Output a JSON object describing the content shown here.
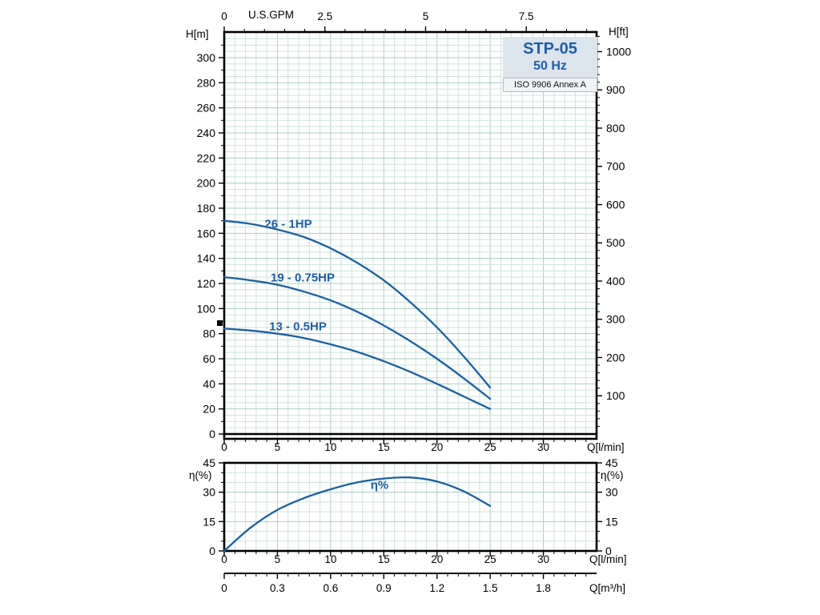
{
  "header": {
    "model": "STP-05",
    "frequency": "50 Hz",
    "standard": "ISO 9906 Annex A"
  },
  "colors": {
    "curve": "#1a61a5",
    "label_blue": "#1b5fa8",
    "grid_minor": "#cde4d9",
    "grid_major": "#a9cfc1",
    "frame": "#000000",
    "title_box_bg": "#dce4ee"
  },
  "axis_titles": {
    "top": "U.S.GPM",
    "main_left": "H[m]",
    "main_right": "H[ft]",
    "main_bottom": "Q[l/min]",
    "eff_left": "η(%)",
    "eff_right": "η(%)",
    "eff_bottom": "Q[l/min]",
    "m3h": "Q[m³/h]"
  },
  "chart_data": [
    {
      "type": "line",
      "title": "STP-05 50 Hz head curves (ISO 9906 Annex A)",
      "xlabel": "Q[l/min]",
      "ylabel": "H[m]",
      "xlim": [
        0,
        35
      ],
      "ylim": [
        0,
        320
      ],
      "grid": true,
      "x_ticks": [
        0,
        5,
        10,
        15,
        20,
        25,
        30
      ],
      "y_ticks": [
        0,
        20,
        40,
        60,
        80,
        100,
        120,
        140,
        160,
        180,
        200,
        220,
        240,
        260,
        280,
        300
      ],
      "top_axis": {
        "label": "U.S.GPM",
        "ticks": [
          0,
          2.5,
          5,
          7.5
        ],
        "lmin_per_unit": 3.78541
      },
      "right_axis": {
        "label": "H[ft]",
        "ticks": [
          100,
          200,
          300,
          400,
          500,
          600,
          700,
          800,
          900,
          1000
        ],
        "m_per_unit": 0.3048
      },
      "series": [
        {
          "name": "26 - 1HP",
          "x": [
            0,
            2.5,
            5,
            7.5,
            10,
            12.5,
            15,
            17.5,
            20,
            22.5,
            25
          ],
          "y": [
            170,
            167.5,
            163,
            157,
            148,
            136.5,
            122.5,
            105,
            85,
            62,
            37
          ]
        },
        {
          "name": "19 - 0.75HP",
          "x": [
            0,
            2.5,
            5,
            7.5,
            10,
            12.5,
            15,
            17.5,
            20,
            22.5,
            25
          ],
          "y": [
            125,
            122.5,
            119,
            113.5,
            106.5,
            97.5,
            86.5,
            74,
            60,
            44.5,
            28
          ]
        },
        {
          "name": "13 - 0.5HP",
          "x": [
            0,
            2.5,
            5,
            7.5,
            10,
            12.5,
            15,
            17.5,
            20,
            22.5,
            25
          ],
          "y": [
            84,
            82.5,
            80,
            76.5,
            71.5,
            65.5,
            58,
            49.5,
            40,
            30,
            20
          ]
        }
      ]
    },
    {
      "type": "line",
      "title": "Efficiency curve",
      "xlabel": "Q[l/min]",
      "ylabel": "η(%)",
      "xlim": [
        0,
        35
      ],
      "ylim": [
        0,
        45
      ],
      "grid": true,
      "x_ticks": [
        0,
        5,
        10,
        15,
        20,
        25,
        30
      ],
      "y_ticks": [
        0,
        15,
        30,
        45
      ],
      "secondary_x_axis": {
        "label": "Q[m³/h]",
        "ticks": [
          0,
          0.3,
          0.6,
          0.9,
          1.2,
          1.5,
          1.8
        ],
        "lmin_per_unit": 16.6667
      },
      "series": [
        {
          "name": "η%",
          "x": [
            0,
            2.5,
            5,
            7.5,
            10,
            12.5,
            15,
            17.5,
            20,
            22.5,
            25
          ],
          "y": [
            0,
            12,
            21,
            27,
            31.5,
            35,
            37,
            37.5,
            35.5,
            30.5,
            23
          ]
        }
      ]
    }
  ]
}
